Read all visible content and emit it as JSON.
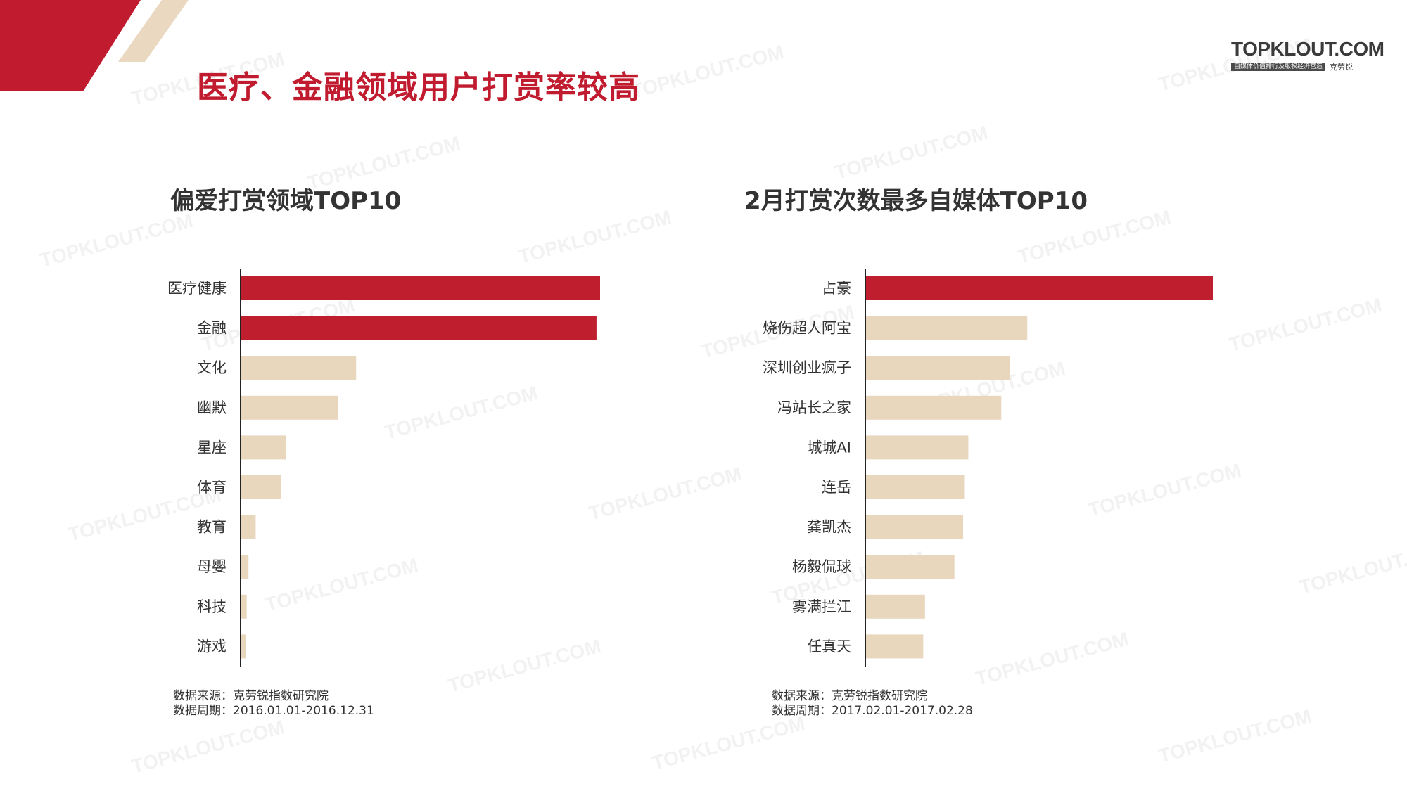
{
  "header": {
    "title": "医疗、金融领域用户打赏率较高",
    "logo_text": "TOPKLOUT.COM",
    "logo_tagline": "自媒体价值排行及版权经济营造",
    "logo_cn": "克劳锐"
  },
  "watermark_text": "TOPKLOUT.COM",
  "colors": {
    "accent": "#c01b2e",
    "bar_primary": "#be1e2d",
    "bar_secondary": "#e8d6bd",
    "corner_beige": "#ead8c1"
  },
  "chart_data": [
    {
      "type": "bar",
      "orientation": "horizontal",
      "title": "偏爱打赏领域TOP10",
      "categories": [
        "医疗健康",
        "金融",
        "文化",
        "幽默",
        "星座",
        "体育",
        "教育",
        "母婴",
        "科技",
        "游戏"
      ],
      "values": [
        100,
        99,
        32,
        27,
        12.5,
        11,
        4,
        2,
        1.5,
        1.2
      ],
      "highlight": [
        true,
        true,
        false,
        false,
        false,
        false,
        false,
        false,
        false,
        false
      ],
      "xlim": [
        0,
        100
      ],
      "footnote_source": "数据来源：克劳锐指数研究院",
      "footnote_period": "数据周期：2016.01.01-2016.12.31"
    },
    {
      "type": "bar",
      "orientation": "horizontal",
      "title": "2月打赏次数最多自媒体TOP10",
      "categories": [
        "占豪",
        "烧伤超人阿宝",
        "深圳创业疯子",
        "冯站长之家",
        "城城AI",
        "连岳",
        "龚凯杰",
        "杨毅侃球",
        "雾满拦江",
        "任真天"
      ],
      "values": [
        100,
        46.5,
        41.5,
        39,
        29.5,
        28.5,
        28,
        25.5,
        17,
        16.5
      ],
      "highlight": [
        true,
        false,
        false,
        false,
        false,
        false,
        false,
        false,
        false,
        false
      ],
      "xlim": [
        0,
        100
      ],
      "footnote_source": "数据来源：克劳锐指数研究院",
      "footnote_period": "数据周期：2017.02.01-2017.02.28"
    }
  ]
}
